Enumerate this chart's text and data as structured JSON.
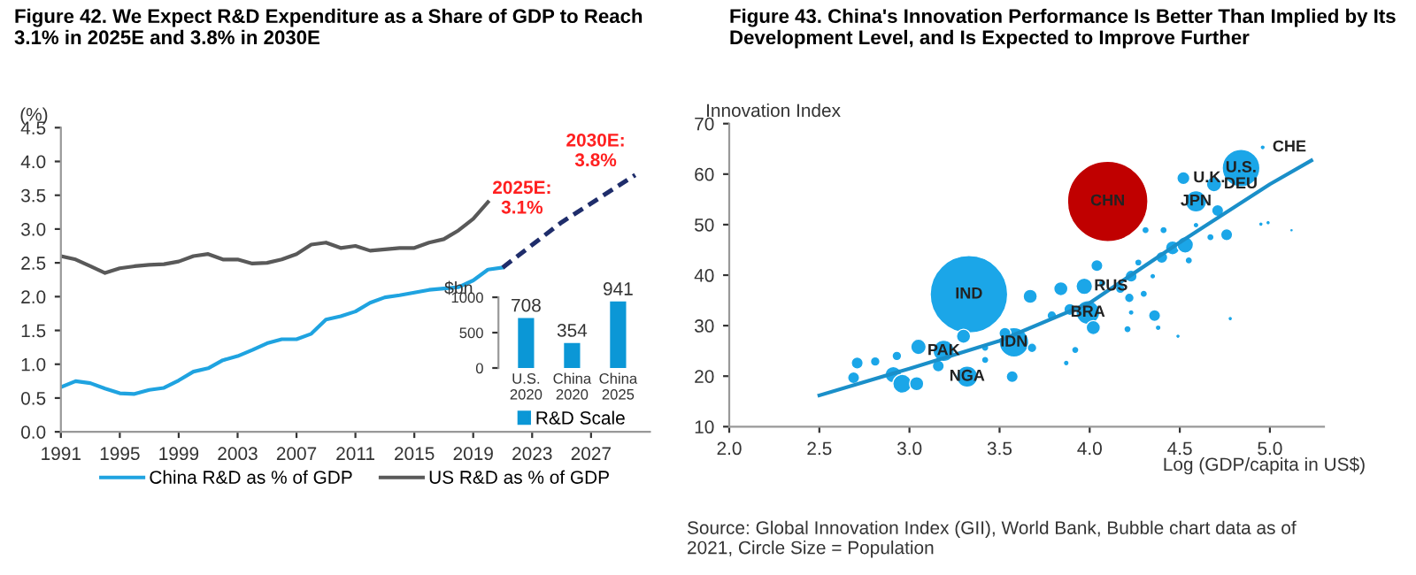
{
  "chart_data": [
    {
      "type": "line",
      "title": "Figure 42. We Expect R&D Expenditure as a Share of GDP to Reach\n3.1% in 2025E and 3.8% in 2030E",
      "ylabel": "(%)",
      "xlim": [
        1991,
        2031
      ],
      "xticks": [
        1991,
        1995,
        1999,
        2003,
        2007,
        2011,
        2015,
        2019,
        2023,
        2027
      ],
      "ylim": [
        0,
        4.5
      ],
      "yticks": [
        {
          "value": 0,
          "label": "0.0"
        },
        {
          "value": 0.5,
          "label": "0.5"
        },
        {
          "value": 1,
          "label": "1.0"
        },
        {
          "value": 1.5,
          "label": "1.5"
        },
        {
          "value": 2,
          "label": "2.0"
        },
        {
          "value": 2.5,
          "label": "2.5"
        },
        {
          "value": 3,
          "label": "3.0"
        },
        {
          "value": 3.5,
          "label": "3.5"
        },
        {
          "value": 4,
          "label": "4.0"
        },
        {
          "value": 4.5,
          "label": "4.5"
        }
      ],
      "grid": false,
      "legend": "bottom",
      "series": [
        {
          "name": "China R&D as % of GDP",
          "color": "#1fa3e0",
          "x": [
            1991,
            1992,
            1993,
            1994,
            1995,
            1996,
            1997,
            1998,
            1999,
            2000,
            2001,
            2002,
            2003,
            2004,
            2005,
            2006,
            2007,
            2008,
            2009,
            2010,
            2011,
            2012,
            2013,
            2014,
            2015,
            2016,
            2017,
            2018,
            2019,
            2020,
            2021
          ],
          "values": [
            0.66,
            0.75,
            0.72,
            0.64,
            0.57,
            0.56,
            0.62,
            0.65,
            0.76,
            0.89,
            0.94,
            1.06,
            1.12,
            1.21,
            1.31,
            1.37,
            1.37,
            1.45,
            1.66,
            1.71,
            1.78,
            1.91,
            1.99,
            2.02,
            2.06,
            2.1,
            2.12,
            2.14,
            2.24,
            2.4,
            2.43
          ]
        },
        {
          "name": "US R&D as % of GDP",
          "color": "#595959",
          "x": [
            1991,
            1992,
            1993,
            1994,
            1995,
            1996,
            1997,
            1998,
            1999,
            2000,
            2001,
            2002,
            2003,
            2004,
            2005,
            2006,
            2007,
            2008,
            2009,
            2010,
            2011,
            2012,
            2013,
            2014,
            2015,
            2016,
            2017,
            2018,
            2019,
            2020
          ],
          "values": [
            2.6,
            2.55,
            2.45,
            2.35,
            2.42,
            2.45,
            2.47,
            2.48,
            2.52,
            2.6,
            2.63,
            2.55,
            2.55,
            2.49,
            2.5,
            2.55,
            2.63,
            2.77,
            2.8,
            2.72,
            2.75,
            2.68,
            2.7,
            2.72,
            2.72,
            2.8,
            2.85,
            2.98,
            3.15,
            3.4
          ]
        },
        {
          "color": "#1f2d6b",
          "line_style": "dashed",
          "x": [
            2021,
            2025,
            2030
          ],
          "values": [
            2.43,
            3.1,
            3.8
          ]
        }
      ],
      "annotations": [
        {
          "text": "2025E:\n3.1%",
          "x": 2025,
          "y": 3.1
        },
        {
          "text": "2030E:\n3.8%",
          "x": 2030,
          "y": 3.8
        }
      ]
    },
    {
      "type": "bar",
      "ylabel": "$bn",
      "categories": [
        "U.S.\n2020",
        "China\n2020",
        "China\n2025"
      ],
      "ylim": [
        0,
        1000
      ],
      "yticks": [
        0,
        500,
        1000
      ],
      "series": [
        {
          "name": "R&D Scale",
          "color": "#0b97d6",
          "values": [
            708,
            354,
            941
          ]
        }
      ],
      "data_labels": true,
      "legend": "bottom"
    },
    {
      "type": "bubble",
      "ylabel": "Innovation Index",
      "xlabel": "Log (GDP/capita in US$)",
      "xlim": [
        2.0,
        5.3
      ],
      "xticks": [
        {
          "value": 2,
          "label": "2.0"
        },
        {
          "value": 2.5,
          "label": "2.5"
        },
        {
          "value": 3,
          "label": "3.0"
        },
        {
          "value": 3.5,
          "label": "3.5"
        },
        {
          "value": 4,
          "label": "4.0"
        },
        {
          "value": 4.5,
          "label": "4.5"
        },
        {
          "value": 5,
          "label": "5.0"
        }
      ],
      "ylim": [
        10,
        70
      ],
      "yticks": [
        10,
        20,
        30,
        40,
        50,
        60,
        70
      ],
      "grid": false,
      "series": [
        {
          "color": "#1ba6e8",
          "x": [
            3.33,
            3.58,
            3.19,
            3.32,
            3.97,
            3.99,
            4.84,
            4.96,
            4.52,
            4.69,
            4.59,
            2.71,
            2.81,
            2.69,
            2.93,
            2.91,
            2.96,
            3.04,
            3.05,
            3.16,
            3.3,
            3.42,
            3.42,
            3.53,
            3.57,
            3.67,
            3.68,
            3.79,
            3.84,
            3.89,
            3.92,
            3.87,
            4.04,
            4.02,
            4.07,
            4.17,
            4.22,
            4.23,
            4.23,
            4.27,
            4.3,
            4.35,
            4.36,
            4.38,
            4.4,
            4.41,
            4.46,
            4.53,
            4.55,
            4.67,
            4.71,
            4.76,
            4.78,
            4.49,
            4.21,
            4.31,
            4.59,
            4.95,
            4.99,
            5.12
          ],
          "values": [
            36.2,
            26.7,
            25.0,
            19.9,
            37.8,
            32.6,
            61.2,
            65.3,
            59.2,
            58.0,
            54.6,
            22.6,
            22.9,
            19.7,
            24.0,
            20.3,
            18.5,
            18.5,
            25.8,
            22.0,
            27.9,
            25.6,
            23.2,
            28.5,
            19.9,
            35.8,
            25.6,
            32.0,
            37.3,
            33.2,
            25.2,
            22.6,
            41.9,
            29.6,
            38.4,
            37.3,
            35.5,
            39.8,
            32.6,
            42.5,
            36.3,
            39.8,
            32.0,
            29.6,
            43.5,
            48.9,
            45.4,
            46.0,
            42.9,
            47.5,
            52.8,
            48.0,
            31.4,
            27.9,
            29.3,
            48.9,
            49.9,
            50.1,
            50.4,
            48.9
          ],
          "sizes": [
            0.93,
            0.135,
            0.07,
            0.07,
            0.042,
            0.087,
            0.22,
            0.004,
            0.026,
            0.036,
            0.07,
            0.022,
            0.014,
            0.022,
            0.014,
            0.042,
            0.055,
            0.031,
            0.037,
            0.022,
            0.031,
            0.008,
            0.008,
            0.022,
            0.022,
            0.031,
            0.014,
            0.014,
            0.031,
            0.022,
            0.008,
            0.005,
            0.022,
            0.031,
            0.008,
            0.014,
            0.014,
            0.022,
            0.005,
            0.008,
            0.008,
            0.005,
            0.022,
            0.005,
            0.022,
            0.008,
            0.031,
            0.042,
            0.008,
            0.008,
            0.022,
            0.022,
            0.003,
            0.003,
            0.008,
            0.008,
            0.005,
            0.003,
            0.003,
            0.002
          ]
        },
        {
          "color": "#c00000",
          "x": [
            4.1
          ],
          "values": [
            54.6
          ],
          "sizes": [
            1.0
          ]
        },
        {
          "type": "line",
          "color": "#1a8fc9",
          "x": [
            2.5,
            3.0,
            3.5,
            4.0,
            4.5,
            5.0,
            5.23
          ],
          "values": [
            16.2,
            21.5,
            27.0,
            34.5,
            46.5,
            58.0,
            62.7
          ]
        }
      ],
      "annotations": [
        {
          "text": "CHN",
          "x": 4.1,
          "y": 54.6
        },
        {
          "text": "IND",
          "x": 3.33,
          "y": 36.2
        },
        {
          "text": "U.S.",
          "x": 4.84,
          "y": 61.2
        },
        {
          "text": "CHE",
          "x": 4.96,
          "y": 65.3
        },
        {
          "text": "U.K.",
          "x": 4.52,
          "y": 59.2
        },
        {
          "text": "DEU",
          "x": 4.69,
          "y": 58.0
        },
        {
          "text": "JPN",
          "x": 4.59,
          "y": 54.6
        },
        {
          "text": "RUS",
          "x": 3.97,
          "y": 37.8
        },
        {
          "text": "BRA",
          "x": 3.99,
          "y": 32.6
        },
        {
          "text": "IDN",
          "x": 3.58,
          "y": 26.7
        },
        {
          "text": "PAK",
          "x": 3.19,
          "y": 25.0
        },
        {
          "text": "NGA",
          "x": 3.32,
          "y": 19.9
        },
        "Source: Global Innovation Index (GII), World Bank, Bubble chart data as of\n2021, Circle Size = Population"
      ],
      "title": "Figure 43. China's Innovation Performance Is Better Than Implied by Its\nDevelopment Level, and Is Expected to Improve Further"
    }
  ]
}
